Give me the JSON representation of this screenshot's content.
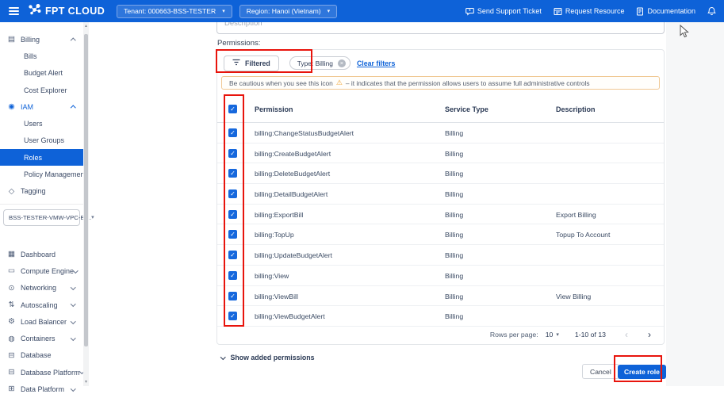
{
  "navbar": {
    "logo_text": "FPT CLOUD",
    "tenant": "Tenant: 000663-BSS-TESTER",
    "region": "Region: Hanoi (Vietnam)",
    "links": {
      "support": "Send Support Ticket",
      "resource": "Request Resource",
      "docs": "Documentation"
    }
  },
  "sidebar": {
    "groups": [
      {
        "items": [
          {
            "label": "Billing",
            "type": "parent",
            "icon": "billing-icon",
            "chevron": "up"
          },
          {
            "label": "Bills",
            "type": "child"
          },
          {
            "label": "Budget Alert",
            "type": "child"
          },
          {
            "label": "Cost Explorer",
            "type": "child"
          },
          {
            "label": "IAM",
            "type": "parent",
            "icon": "iam-icon",
            "chevron": "up",
            "active": true
          },
          {
            "label": "Users",
            "type": "child"
          },
          {
            "label": "User Groups",
            "type": "child"
          },
          {
            "label": "Roles",
            "type": "child",
            "selected": true
          },
          {
            "label": "Policy Management",
            "type": "child"
          },
          {
            "label": "Tagging",
            "type": "parent",
            "icon": "tagging-icon"
          }
        ]
      },
      {
        "items": [
          {
            "label": "Dashboard",
            "type": "parent",
            "icon": "dashboard-icon"
          },
          {
            "label": "Compute Engine",
            "type": "parent",
            "icon": "compute-engine-icon",
            "chevron": "down"
          },
          {
            "label": "Networking",
            "type": "parent",
            "icon": "networking-icon",
            "chevron": "down"
          },
          {
            "label": "Autoscaling",
            "type": "parent",
            "icon": "autoscaling-icon",
            "chevron": "down"
          },
          {
            "label": "Load Balancer",
            "type": "parent",
            "icon": "load-balancer-icon",
            "chevron": "down"
          },
          {
            "label": "Containers",
            "type": "parent",
            "icon": "containers-icon",
            "chevron": "down"
          },
          {
            "label": "Database",
            "type": "parent",
            "icon": "database-icon"
          },
          {
            "label": "Database Platform",
            "type": "parent",
            "icon": "database-platform-icon",
            "chevron": "down"
          },
          {
            "label": "Data Platform",
            "type": "parent",
            "icon": "data-platform-icon",
            "chevron": "down"
          }
        ]
      }
    ],
    "project_selector": "BSS-TESTER-VMW-VPC-BI..."
  },
  "content": {
    "description_placeholder": "Description",
    "permissions_label": "Permissions:",
    "filter": {
      "filtered_label": "Filtered",
      "chip": "Type: Billing",
      "clear": "Clear filters"
    },
    "warning": {
      "prefix": "Be cautious when you see this icon",
      "suffix": "– it indicates that the permission allows users to assume full administrative controls"
    },
    "table": {
      "headers": {
        "permission": "Permission",
        "service_type": "Service Type",
        "description": "Description"
      },
      "rows": [
        {
          "permission": "billing:ChangeStatusBudgetAlert",
          "service_type": "Billing",
          "description": "",
          "checked": true
        },
        {
          "permission": "billing:CreateBudgetAlert",
          "service_type": "Billing",
          "description": "",
          "checked": true
        },
        {
          "permission": "billing:DeleteBudgetAlert",
          "service_type": "Billing",
          "description": "",
          "checked": true
        },
        {
          "permission": "billing:DetailBudgetAlert",
          "service_type": "Billing",
          "description": "",
          "checked": true
        },
        {
          "permission": "billing:ExportBill",
          "service_type": "Billing",
          "description": "Export Billing",
          "checked": true
        },
        {
          "permission": "billing:TopUp",
          "service_type": "Billing",
          "description": "Topup To Account",
          "checked": true
        },
        {
          "permission": "billing:UpdateBudgetAlert",
          "service_type": "Billing",
          "description": "",
          "checked": true
        },
        {
          "permission": "billing:View",
          "service_type": "Billing",
          "description": "",
          "checked": true
        },
        {
          "permission": "billing:ViewBill",
          "service_type": "Billing",
          "description": "View Billing",
          "checked": true
        },
        {
          "permission": "billing:ViewBudgetAlert",
          "service_type": "Billing",
          "description": "",
          "checked": true
        }
      ],
      "header_checked": true,
      "pagination": {
        "rows_per_page_label": "Rows per page:",
        "rows_per_page": "10",
        "range": "1-10 of 13",
        "prev": "‹",
        "next": "›"
      }
    },
    "show_added": "Show added permissions",
    "cancel_label": "Cancel",
    "create_label": "Create role"
  },
  "icon_glyphs": {
    "billing-icon": "▤",
    "iam-icon": "◉",
    "tagging-icon": "◇",
    "dashboard-icon": "▦",
    "compute-engine-icon": "▭",
    "networking-icon": "⊙",
    "autoscaling-icon": "⇅",
    "load-balancer-icon": "⚙",
    "containers-icon": "◍",
    "database-icon": "⊟",
    "database-platform-icon": "⊟",
    "data-platform-icon": "⊞",
    "check-icon": "✓",
    "close-icon": "×",
    "warning-icon": "⚠",
    "caret-down-icon": "▾",
    "scroll-up-icon": "▴",
    "scroll-down-icon": "▾"
  },
  "colors": {
    "brand_blue": "#0e62d8",
    "annotation_red": "#e8140c",
    "warning_orange": "#f0a12c",
    "checkbox_blue": "#1668dd",
    "link_blue": "#0e62d8"
  }
}
